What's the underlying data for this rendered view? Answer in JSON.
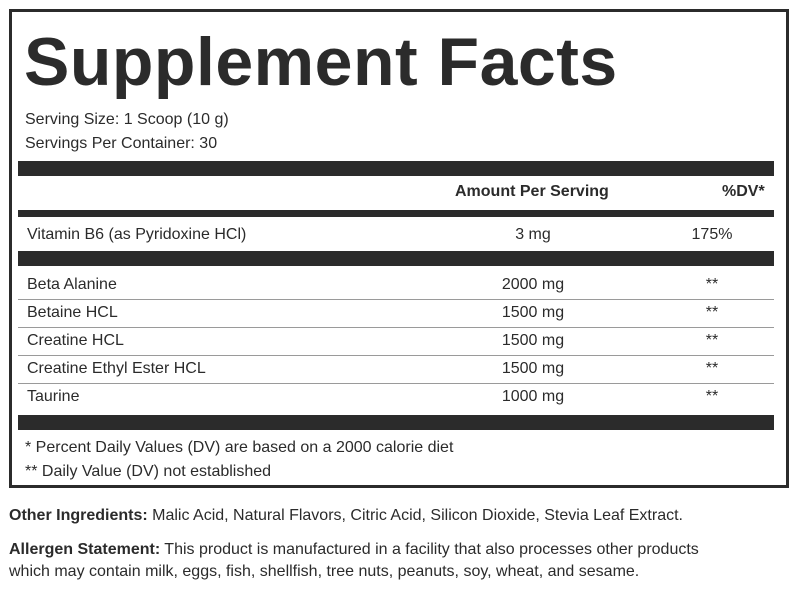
{
  "title": "Supplement Facts",
  "serving_size": "Serving Size:  1 Scoop (10 g)",
  "servings_per_container": "Servings Per Container: 30",
  "header": {
    "amount": "Amount Per Serving",
    "dv": "%DV*"
  },
  "vitamins": [
    {
      "name": "Vitamin B6 (as Pyridoxine HCl)",
      "amount": "3 mg",
      "dv": "175%"
    }
  ],
  "ingredients": [
    {
      "name": "Beta Alanine",
      "amount": "2000 mg",
      "dv": "**"
    },
    {
      "name": "Betaine HCL",
      "amount": "1500 mg",
      "dv": "**"
    },
    {
      "name": "Creatine HCL",
      "amount": "1500 mg",
      "dv": "**"
    },
    {
      "name": "Creatine Ethyl Ester HCL",
      "amount": "1500 mg",
      "dv": "**"
    },
    {
      "name": "Taurine",
      "amount": "1000 mg",
      "dv": "**"
    }
  ],
  "footnotes": [
    "* Percent Daily Values (DV) are based on a 2000 calorie diet",
    "** Daily Value (DV) not established"
  ],
  "other_ingredients": {
    "label": "Other Ingredients:",
    "text": " Malic Acid, Natural Flavors, Citric Acid, Silicon Dioxide, Stevia Leaf Extract."
  },
  "allergen": {
    "label": "Allergen Statement:",
    "line1": " This product is manufactured in a facility that also processes other products",
    "line2": "which may contain milk, eggs, fish, shellfish, tree nuts, peanuts, soy, wheat, and sesame."
  }
}
